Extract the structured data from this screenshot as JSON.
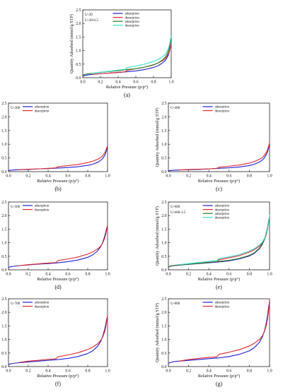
{
  "colors": {
    "adsorption": "#1f1fd6",
    "desorption": "#e0282a",
    "adsorption_second": "#2a7a1e",
    "desorption_second": "#2fe0d2"
  },
  "chart_data": [
    {
      "panel_label": "(a)",
      "type": "line",
      "xlabel": "Relative Pressure (p/p°)",
      "ylabel": "Quantity Adsorbed (mmol/g STP)",
      "xlim": [
        0.0,
        1.0
      ],
      "ylim": [
        0.0,
        2.5
      ],
      "xticks": [
        "0.0",
        "0.2",
        "0.4",
        "0.6",
        "0.8",
        "1.0"
      ],
      "yticks": [
        "0.0",
        "0.5",
        "1.0",
        "1.5",
        "2.0",
        "2.5"
      ],
      "sample_labels": [
        "U-20",
        "U-20-0.5"
      ],
      "legend_position": "top-center",
      "series": [
        {
          "name": "adsorption",
          "color_key": "adsorption",
          "x": [
            0.0,
            0.02,
            0.05,
            0.1,
            0.2,
            0.3,
            0.4,
            0.5,
            0.6,
            0.7,
            0.8,
            0.85,
            0.9,
            0.93,
            0.95,
            0.97,
            0.98,
            0.99,
            1.0
          ],
          "y": [
            0.06,
            0.08,
            0.1,
            0.12,
            0.15,
            0.17,
            0.19,
            0.22,
            0.25,
            0.3,
            0.38,
            0.44,
            0.54,
            0.63,
            0.72,
            0.86,
            0.97,
            1.12,
            1.25
          ]
        },
        {
          "name": "desorption",
          "color_key": "desorption",
          "x": [
            1.0,
            0.99,
            0.98,
            0.97,
            0.95,
            0.93,
            0.9,
            0.85,
            0.8,
            0.7,
            0.6,
            0.5,
            0.48,
            0.45,
            0.4,
            0.3,
            0.2,
            0.1
          ],
          "y": [
            1.25,
            1.13,
            1.0,
            0.9,
            0.78,
            0.7,
            0.62,
            0.54,
            0.48,
            0.39,
            0.33,
            0.27,
            0.22,
            0.21,
            0.2,
            0.17,
            0.15,
            0.12
          ]
        },
        {
          "name": "adsorption",
          "color_key": "adsorption_second",
          "x": [
            0.0,
            0.02,
            0.05,
            0.1,
            0.2,
            0.3,
            0.4,
            0.5,
            0.6,
            0.7,
            0.8,
            0.85,
            0.9,
            0.93,
            0.95,
            0.97,
            0.98,
            0.99,
            1.0
          ],
          "y": [
            0.09,
            0.12,
            0.14,
            0.16,
            0.2,
            0.23,
            0.26,
            0.3,
            0.33,
            0.39,
            0.47,
            0.54,
            0.65,
            0.75,
            0.85,
            1.0,
            1.12,
            1.3,
            1.5
          ]
        },
        {
          "name": "desorption",
          "color_key": "desorption_second",
          "x": [
            1.0,
            0.99,
            0.98,
            0.97,
            0.95,
            0.93,
            0.9,
            0.85,
            0.8,
            0.7,
            0.6,
            0.5,
            0.48,
            0.45,
            0.4,
            0.3,
            0.2,
            0.1
          ],
          "y": [
            1.55,
            1.38,
            1.22,
            1.1,
            0.95,
            0.86,
            0.77,
            0.67,
            0.6,
            0.5,
            0.43,
            0.37,
            0.31,
            0.3,
            0.28,
            0.24,
            0.2,
            0.16
          ]
        }
      ]
    },
    {
      "panel_label": "(b)",
      "type": "line",
      "xlabel": "Relative Pressure (p/p°)",
      "ylabel": "Quantity Adsorbed (mmol/g STP)",
      "xlim": [
        0.0,
        1.0
      ],
      "ylim": [
        0.0,
        2.5
      ],
      "xticks": [
        "0.0",
        "0.2",
        "0.4",
        "0.6",
        "0.8",
        "1.0"
      ],
      "yticks": [
        "0.0",
        "0.5",
        "1.0",
        "1.5",
        "2.0",
        "2.5"
      ],
      "sample_labels": [
        "U-300"
      ],
      "legend_position": "top-left",
      "series": [
        {
          "name": "adsorption",
          "color_key": "adsorption",
          "x": [
            0.0,
            0.02,
            0.05,
            0.1,
            0.2,
            0.3,
            0.4,
            0.5,
            0.6,
            0.7,
            0.8,
            0.85,
            0.9,
            0.93,
            0.95,
            0.97,
            0.98,
            0.99,
            1.0
          ],
          "y": [
            0.04,
            0.05,
            0.06,
            0.07,
            0.08,
            0.1,
            0.11,
            0.13,
            0.15,
            0.18,
            0.23,
            0.27,
            0.34,
            0.41,
            0.48,
            0.58,
            0.66,
            0.78,
            0.9
          ]
        },
        {
          "name": "desorption",
          "color_key": "desorption",
          "x": [
            1.0,
            0.99,
            0.98,
            0.97,
            0.95,
            0.93,
            0.9,
            0.85,
            0.8,
            0.7,
            0.6,
            0.5,
            0.48,
            0.45,
            0.4,
            0.3,
            0.2,
            0.1
          ],
          "y": [
            0.95,
            0.85,
            0.75,
            0.68,
            0.58,
            0.51,
            0.45,
            0.38,
            0.33,
            0.26,
            0.22,
            0.18,
            0.14,
            0.13,
            0.12,
            0.1,
            0.09,
            0.07
          ]
        }
      ]
    },
    {
      "panel_label": "(c)",
      "type": "line",
      "xlabel": "Relative Pressure (p/p°)",
      "ylabel": "Quantity Adsorbed (mmol/g STP)",
      "xlim": [
        0.0,
        1.0
      ],
      "ylim": [
        0.0,
        2.5
      ],
      "xticks": [
        "0.0",
        "0.2",
        "0.4",
        "0.6",
        "0.8",
        "1.0"
      ],
      "yticks": [
        "0.0",
        "0.5",
        "1.0",
        "1.5",
        "2.0",
        "2.5"
      ],
      "sample_labels": [
        "U-400"
      ],
      "legend_position": "top-center",
      "series": [
        {
          "name": "adsorption",
          "color_key": "adsorption",
          "x": [
            0.0,
            0.02,
            0.05,
            0.1,
            0.2,
            0.3,
            0.4,
            0.5,
            0.6,
            0.7,
            0.8,
            0.85,
            0.9,
            0.93,
            0.95,
            0.97,
            0.98,
            0.99,
            1.0
          ],
          "y": [
            0.03,
            0.04,
            0.05,
            0.06,
            0.07,
            0.08,
            0.1,
            0.12,
            0.14,
            0.17,
            0.22,
            0.27,
            0.35,
            0.43,
            0.51,
            0.63,
            0.72,
            0.86,
            1.0
          ]
        },
        {
          "name": "desorption",
          "color_key": "desorption",
          "x": [
            1.0,
            0.99,
            0.98,
            0.97,
            0.95,
            0.93,
            0.9,
            0.85,
            0.8,
            0.7,
            0.6,
            0.5,
            0.48,
            0.45,
            0.4,
            0.3,
            0.2,
            0.1
          ],
          "y": [
            1.05,
            0.92,
            0.8,
            0.72,
            0.6,
            0.52,
            0.45,
            0.37,
            0.31,
            0.24,
            0.2,
            0.16,
            0.12,
            0.11,
            0.1,
            0.09,
            0.08,
            0.06
          ]
        }
      ]
    },
    {
      "panel_label": "(d)",
      "type": "line",
      "xlabel": "Relative Pressure (p/p°)",
      "ylabel": "Quantity Adsorbed (mmol/g STP)",
      "xlim": [
        0.0,
        1.0
      ],
      "ylim": [
        0.0,
        2.5
      ],
      "xticks": [
        "0.0",
        "0.2",
        "0.4",
        "0.6",
        "0.8",
        "1.0"
      ],
      "yticks": [
        "0.0",
        "0.5",
        "1.0",
        "1.5",
        "2.0",
        "2.5"
      ],
      "sample_labels": [
        "U-500"
      ],
      "legend_position": "top-left",
      "series": [
        {
          "name": "adsorption",
          "color_key": "adsorption",
          "x": [
            0.0,
            0.02,
            0.05,
            0.1,
            0.2,
            0.3,
            0.4,
            0.5,
            0.6,
            0.7,
            0.8,
            0.85,
            0.9,
            0.93,
            0.95,
            0.97,
            0.98,
            0.99,
            1.0
          ],
          "y": [
            0.09,
            0.11,
            0.13,
            0.15,
            0.18,
            0.21,
            0.23,
            0.26,
            0.3,
            0.36,
            0.46,
            0.55,
            0.7,
            0.85,
            1.0,
            1.22,
            1.36,
            1.52,
            1.62
          ]
        },
        {
          "name": "desorption",
          "color_key": "desorption",
          "x": [
            1.0,
            0.99,
            0.98,
            0.97,
            0.95,
            0.93,
            0.9,
            0.85,
            0.8,
            0.7,
            0.6,
            0.5,
            0.48,
            0.45,
            0.4,
            0.3,
            0.2,
            0.1
          ],
          "y": [
            1.66,
            1.45,
            1.28,
            1.15,
            0.98,
            0.87,
            0.77,
            0.66,
            0.58,
            0.47,
            0.4,
            0.34,
            0.27,
            0.26,
            0.25,
            0.22,
            0.19,
            0.15
          ]
        }
      ]
    },
    {
      "panel_label": "(e)",
      "type": "line",
      "xlabel": "Relative Pressure (p/p°)",
      "ylabel": "Quantity Adsorbed (mmol/g STP)",
      "xlim": [
        0.0,
        1.0
      ],
      "ylim": [
        0.0,
        2.5
      ],
      "xticks": [
        "0.0",
        "0.2",
        "0.4",
        "0.6",
        "0.8",
        "1.0"
      ],
      "yticks": [
        "0.0",
        "0.5",
        "1.0",
        "1.5",
        "2.0",
        "2.5"
      ],
      "sample_labels": [
        "U-600",
        "U-600-3.5"
      ],
      "legend_position": "top-center",
      "series": [
        {
          "name": "adsorption",
          "color_key": "adsorption",
          "x": [
            0.0,
            0.02,
            0.05,
            0.1,
            0.2,
            0.3,
            0.4,
            0.5,
            0.6,
            0.7,
            0.8,
            0.85,
            0.9,
            0.93,
            0.95,
            0.97,
            0.98,
            0.99,
            1.0
          ],
          "y": [
            0.1,
            0.13,
            0.15,
            0.17,
            0.2,
            0.23,
            0.26,
            0.29,
            0.33,
            0.4,
            0.51,
            0.61,
            0.78,
            0.95,
            1.12,
            1.38,
            1.55,
            1.78,
            1.95
          ]
        },
        {
          "name": "desorption",
          "color_key": "desorption",
          "x": [
            1.0,
            0.99,
            0.98,
            0.97,
            0.95,
            0.93,
            0.9,
            0.85,
            0.8,
            0.7,
            0.6,
            0.5,
            0.48,
            0.45,
            0.4,
            0.3,
            0.2,
            0.1
          ],
          "y": [
            2.0,
            1.72,
            1.48,
            1.32,
            1.12,
            0.99,
            0.87,
            0.74,
            0.65,
            0.52,
            0.44,
            0.37,
            0.3,
            0.29,
            0.28,
            0.24,
            0.21,
            0.17
          ]
        },
        {
          "name": "adsorption",
          "color_key": "adsorption_second",
          "x": [
            0.0,
            0.02,
            0.05,
            0.1,
            0.2,
            0.3,
            0.4,
            0.5,
            0.6,
            0.7,
            0.8,
            0.85,
            0.9,
            0.93,
            0.95,
            0.97,
            0.98,
            0.99,
            1.0
          ],
          "y": [
            0.11,
            0.14,
            0.16,
            0.18,
            0.21,
            0.24,
            0.27,
            0.31,
            0.35,
            0.42,
            0.53,
            0.63,
            0.8,
            0.97,
            1.14,
            1.4,
            1.57,
            1.8,
            1.98
          ]
        },
        {
          "name": "desorption",
          "color_key": "desorption_second",
          "x": [
            1.0,
            0.99,
            0.98,
            0.97,
            0.95,
            0.93,
            0.9,
            0.85,
            0.8,
            0.7,
            0.6,
            0.5,
            0.48,
            0.45,
            0.4,
            0.3,
            0.2,
            0.1
          ],
          "y": [
            2.03,
            1.75,
            1.52,
            1.36,
            1.16,
            1.03,
            0.91,
            0.78,
            0.69,
            0.56,
            0.48,
            0.41,
            0.34,
            0.33,
            0.31,
            0.27,
            0.23,
            0.19
          ]
        }
      ]
    },
    {
      "panel_label": "(f)",
      "type": "line",
      "xlabel": "Relative Pressure (p/p°)",
      "ylabel": "Quantity Adsorbed (mmol/g STP)",
      "xlim": [
        0.0,
        1.0
      ],
      "ylim": [
        0.0,
        2.5
      ],
      "xticks": [
        "0.0",
        "0.2",
        "0.4",
        "0.6",
        "0.8",
        "1.0"
      ],
      "yticks": [
        "0.0",
        "0.5",
        "1.0",
        "1.5",
        "2.0",
        "2.5"
      ],
      "sample_labels": [
        "U-700"
      ],
      "legend_position": "top-left",
      "series": [
        {
          "name": "adsorption",
          "color_key": "adsorption",
          "x": [
            0.0,
            0.02,
            0.05,
            0.1,
            0.2,
            0.3,
            0.4,
            0.5,
            0.6,
            0.7,
            0.8,
            0.85,
            0.9,
            0.93,
            0.95,
            0.97,
            0.98,
            0.99,
            1.0
          ],
          "y": [
            0.08,
            0.1,
            0.12,
            0.14,
            0.17,
            0.2,
            0.23,
            0.26,
            0.3,
            0.37,
            0.48,
            0.58,
            0.75,
            0.92,
            1.1,
            1.36,
            1.52,
            1.72,
            1.86
          ]
        },
        {
          "name": "desorption",
          "color_key": "desorption",
          "x": [
            1.0,
            0.99,
            0.98,
            0.97,
            0.95,
            0.93,
            0.9,
            0.85,
            0.8,
            0.7,
            0.6,
            0.5,
            0.48,
            0.45,
            0.4,
            0.3,
            0.2,
            0.1
          ],
          "y": [
            1.9,
            1.64,
            1.42,
            1.27,
            1.08,
            0.96,
            0.84,
            0.72,
            0.63,
            0.51,
            0.43,
            0.36,
            0.29,
            0.28,
            0.27,
            0.23,
            0.2,
            0.15
          ]
        }
      ]
    },
    {
      "panel_label": "(g)",
      "type": "line",
      "xlabel": "Relative Pressure (p/p°)",
      "ylabel": "Quantity Adsorbed (mmol/g STP)",
      "xlim": [
        0.0,
        1.0
      ],
      "ylim": [
        0.0,
        2.5
      ],
      "xticks": [
        "0.0",
        "0.2",
        "0.4",
        "0.6",
        "0.8",
        "1.0"
      ],
      "yticks": [
        "0.0",
        "0.5",
        "1.0",
        "1.5",
        "2.0",
        "2.5"
      ],
      "sample_labels": [
        "U-800"
      ],
      "legend_position": "top-center",
      "series": [
        {
          "name": "adsorption",
          "color_key": "adsorption",
          "x": [
            0.0,
            0.02,
            0.05,
            0.1,
            0.2,
            0.3,
            0.4,
            0.5,
            0.6,
            0.7,
            0.8,
            0.85,
            0.9,
            0.93,
            0.95,
            0.97,
            0.98,
            0.99,
            1.0
          ],
          "y": [
            0.12,
            0.15,
            0.18,
            0.2,
            0.23,
            0.26,
            0.29,
            0.32,
            0.37,
            0.45,
            0.58,
            0.7,
            0.9,
            1.1,
            1.32,
            1.65,
            1.88,
            2.18,
            2.4
          ]
        },
        {
          "name": "desorption",
          "color_key": "desorption",
          "x": [
            1.0,
            0.99,
            0.98,
            0.97,
            0.95,
            0.93,
            0.9,
            0.85,
            0.8,
            0.7,
            0.6,
            0.5,
            0.48,
            0.45,
            0.4,
            0.3,
            0.2,
            0.1
          ],
          "y": [
            2.45,
            2.05,
            1.75,
            1.55,
            1.3,
            1.14,
            1.0,
            0.86,
            0.76,
            0.62,
            0.53,
            0.45,
            0.36,
            0.35,
            0.34,
            0.3,
            0.26,
            0.2
          ]
        }
      ]
    }
  ]
}
